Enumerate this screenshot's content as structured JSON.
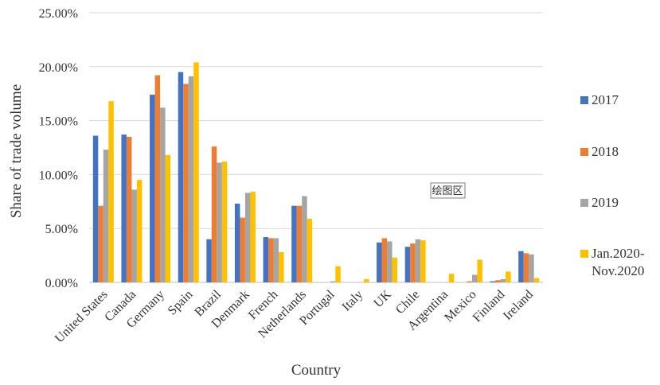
{
  "chart_data": {
    "type": "bar",
    "title": "",
    "xlabel": "Country",
    "ylabel": "Share of trade volume",
    "ylim": [
      0,
      25
    ],
    "yticks": [
      0,
      5,
      10,
      15,
      20,
      25
    ],
    "ytick_labels": [
      "0.00%",
      "5.00%",
      "10.00%",
      "15.00%",
      "20.00%",
      "25.00%"
    ],
    "grid": true,
    "legend_position": "right",
    "annotation": "绘图区",
    "categories": [
      "United States",
      "Canada",
      "Germany",
      "Spain",
      "Brazil",
      "Denmark",
      "French",
      "Netherlands",
      "Portugal",
      "Italy",
      "UK",
      "Chile",
      "Argentina",
      "Mexico",
      "Finland",
      "Ireland"
    ],
    "series": [
      {
        "name": "2017",
        "color": "#4472c4",
        "values": [
          13.6,
          13.7,
          17.4,
          19.5,
          4.0,
          7.3,
          4.2,
          7.1,
          0.0,
          0.0,
          3.7,
          3.3,
          0.0,
          0.0,
          0.1,
          2.9
        ]
      },
      {
        "name": "2018",
        "color": "#ed7d31",
        "values": [
          7.1,
          13.5,
          19.2,
          18.4,
          12.6,
          6.0,
          4.1,
          7.1,
          0.0,
          0.0,
          4.1,
          3.6,
          0.0,
          0.1,
          0.2,
          2.7
        ]
      },
      {
        "name": "2019",
        "color": "#a5a5a5",
        "values": [
          12.3,
          8.6,
          16.2,
          19.1,
          11.1,
          8.3,
          4.1,
          8.0,
          0.1,
          0.0,
          3.8,
          4.0,
          0.0,
          0.7,
          0.3,
          2.6
        ]
      },
      {
        "name": "Jan.2020-\nNov.2020",
        "color": "#ffc000",
        "values": [
          16.8,
          9.5,
          11.8,
          20.4,
          11.2,
          8.4,
          2.8,
          5.9,
          1.5,
          0.3,
          2.3,
          3.9,
          0.8,
          2.1,
          1.0,
          0.4
        ]
      }
    ]
  }
}
